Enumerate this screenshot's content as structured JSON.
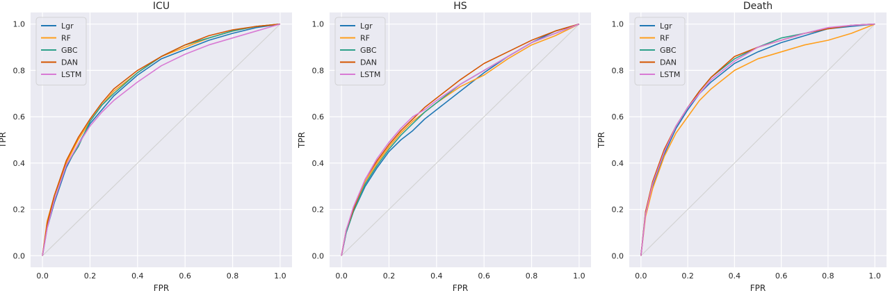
{
  "figure": {
    "panel_titles": [
      "ICU",
      "HS",
      "Death"
    ]
  },
  "colors": {
    "plot_background": "#eaeaf2",
    "grid": "#ffffff",
    "diagonal": "#d3d3d3",
    "Lgr": "#1f77b4",
    "RF": "#ff9f1c",
    "GBC": "#2ca089",
    "DAN": "#d45500",
    "LSTM": "#d87ad4"
  },
  "chart_data": [
    {
      "type": "line",
      "title": "ICU",
      "xlabel": "FPR",
      "ylabel": "TPR",
      "xlim": [
        0,
        1
      ],
      "ylim": [
        0,
        1
      ],
      "xticks": [
        "0.0",
        "0.2",
        "0.4",
        "0.6",
        "0.8",
        "1.0"
      ],
      "yticks": [
        "0.0",
        "0.2",
        "0.4",
        "0.6",
        "0.8",
        "1.0"
      ],
      "grid": true,
      "legend_position": "top-left",
      "diagonal": [
        [
          0,
          0
        ],
        [
          1,
          1
        ]
      ],
      "series": [
        {
          "name": "Lgr",
          "x": [
            0,
            0.02,
            0.05,
            0.1,
            0.15,
            0.2,
            0.25,
            0.3,
            0.4,
            0.5,
            0.6,
            0.7,
            0.8,
            0.9,
            1.0
          ],
          "y": [
            0,
            0.12,
            0.23,
            0.38,
            0.48,
            0.57,
            0.63,
            0.69,
            0.78,
            0.85,
            0.89,
            0.93,
            0.96,
            0.985,
            1.0
          ]
        },
        {
          "name": "RF",
          "x": [
            0,
            0.02,
            0.05,
            0.1,
            0.15,
            0.2,
            0.25,
            0.3,
            0.4,
            0.5,
            0.6,
            0.7,
            0.8,
            0.9,
            1.0
          ],
          "y": [
            0,
            0.15,
            0.26,
            0.4,
            0.5,
            0.58,
            0.65,
            0.71,
            0.79,
            0.86,
            0.9,
            0.94,
            0.97,
            0.99,
            1.0
          ]
        },
        {
          "name": "GBC",
          "x": [
            0,
            0.02,
            0.05,
            0.1,
            0.15,
            0.2,
            0.25,
            0.3,
            0.4,
            0.5,
            0.6,
            0.7,
            0.8,
            0.9,
            1.0
          ],
          "y": [
            0,
            0.13,
            0.24,
            0.39,
            0.47,
            0.58,
            0.65,
            0.7,
            0.79,
            0.86,
            0.91,
            0.94,
            0.97,
            0.99,
            1.0
          ]
        },
        {
          "name": "DAN",
          "x": [
            0,
            0.02,
            0.05,
            0.1,
            0.15,
            0.2,
            0.25,
            0.3,
            0.4,
            0.5,
            0.6,
            0.7,
            0.8,
            0.9,
            1.0
          ],
          "y": [
            0,
            0.14,
            0.26,
            0.41,
            0.51,
            0.59,
            0.66,
            0.72,
            0.8,
            0.86,
            0.91,
            0.95,
            0.975,
            0.99,
            1.0
          ]
        },
        {
          "name": "LSTM",
          "x": [
            0,
            0.02,
            0.05,
            0.1,
            0.15,
            0.2,
            0.25,
            0.3,
            0.4,
            0.5,
            0.6,
            0.7,
            0.8,
            0.9,
            1.0
          ],
          "y": [
            0,
            0.12,
            0.24,
            0.39,
            0.48,
            0.56,
            0.62,
            0.67,
            0.75,
            0.82,
            0.87,
            0.91,
            0.94,
            0.97,
            1.0
          ]
        }
      ]
    },
    {
      "type": "line",
      "title": "HS",
      "xlabel": "FPR",
      "ylabel": "TPR",
      "xlim": [
        0,
        1
      ],
      "ylim": [
        0,
        1
      ],
      "xticks": [
        "0.0",
        "0.2",
        "0.4",
        "0.6",
        "0.8",
        "1.0"
      ],
      "yticks": [
        "0.0",
        "0.2",
        "0.4",
        "0.6",
        "0.8",
        "1.0"
      ],
      "grid": true,
      "legend_position": "top-left",
      "diagonal": [
        [
          0,
          0
        ],
        [
          1,
          1
        ]
      ],
      "series": [
        {
          "name": "Lgr",
          "x": [
            0,
            0.02,
            0.05,
            0.1,
            0.15,
            0.2,
            0.25,
            0.3,
            0.35,
            0.4,
            0.5,
            0.6,
            0.7,
            0.8,
            0.9,
            1.0
          ],
          "y": [
            0,
            0.1,
            0.19,
            0.3,
            0.38,
            0.45,
            0.5,
            0.54,
            0.59,
            0.63,
            0.71,
            0.79,
            0.86,
            0.92,
            0.97,
            1.0
          ]
        },
        {
          "name": "RF",
          "x": [
            0,
            0.02,
            0.05,
            0.1,
            0.15,
            0.2,
            0.25,
            0.3,
            0.35,
            0.4,
            0.5,
            0.6,
            0.7,
            0.8,
            0.9,
            1.0
          ],
          "y": [
            0,
            0.11,
            0.2,
            0.32,
            0.4,
            0.47,
            0.53,
            0.58,
            0.62,
            0.66,
            0.73,
            0.78,
            0.85,
            0.91,
            0.95,
            1.0
          ]
        },
        {
          "name": "GBC",
          "x": [
            0,
            0.02,
            0.05,
            0.1,
            0.15,
            0.2,
            0.25,
            0.3,
            0.35,
            0.4,
            0.5,
            0.6,
            0.7,
            0.8,
            0.9,
            1.0
          ],
          "y": [
            0,
            0.1,
            0.19,
            0.31,
            0.39,
            0.46,
            0.52,
            0.57,
            0.62,
            0.66,
            0.74,
            0.8,
            0.86,
            0.92,
            0.96,
            1.0
          ]
        },
        {
          "name": "DAN",
          "x": [
            0,
            0.02,
            0.05,
            0.1,
            0.15,
            0.2,
            0.25,
            0.3,
            0.35,
            0.4,
            0.5,
            0.6,
            0.7,
            0.8,
            0.9,
            1.0
          ],
          "y": [
            0,
            0.11,
            0.2,
            0.33,
            0.41,
            0.48,
            0.54,
            0.59,
            0.64,
            0.68,
            0.76,
            0.83,
            0.88,
            0.93,
            0.97,
            1.0
          ]
        },
        {
          "name": "LSTM",
          "x": [
            0,
            0.02,
            0.05,
            0.1,
            0.15,
            0.2,
            0.25,
            0.3,
            0.35,
            0.4,
            0.5,
            0.6,
            0.7,
            0.8,
            0.9,
            1.0
          ],
          "y": [
            0,
            0.11,
            0.21,
            0.33,
            0.42,
            0.49,
            0.55,
            0.6,
            0.63,
            0.67,
            0.74,
            0.8,
            0.86,
            0.92,
            0.96,
            1.0
          ]
        }
      ]
    },
    {
      "type": "line",
      "title": "Death",
      "xlabel": "FPR",
      "ylabel": "TPR",
      "xlim": [
        0,
        1
      ],
      "ylim": [
        0,
        1
      ],
      "xticks": [
        "0.0",
        "0.2",
        "0.4",
        "0.6",
        "0.8",
        "1.0"
      ],
      "yticks": [
        "0.0",
        "0.2",
        "0.4",
        "0.6",
        "0.8",
        "1.0"
      ],
      "grid": true,
      "legend_position": "top-left",
      "diagonal": [
        [
          0,
          0
        ],
        [
          1,
          1
        ]
      ],
      "series": [
        {
          "name": "Lgr",
          "x": [
            0,
            0.02,
            0.05,
            0.1,
            0.15,
            0.2,
            0.25,
            0.3,
            0.4,
            0.5,
            0.6,
            0.7,
            0.8,
            0.9,
            1.0
          ],
          "y": [
            0,
            0.18,
            0.3,
            0.44,
            0.55,
            0.63,
            0.7,
            0.75,
            0.83,
            0.88,
            0.92,
            0.95,
            0.98,
            0.99,
            1.0
          ]
        },
        {
          "name": "RF",
          "x": [
            0,
            0.02,
            0.05,
            0.1,
            0.15,
            0.2,
            0.25,
            0.3,
            0.4,
            0.5,
            0.6,
            0.7,
            0.8,
            0.9,
            1.0
          ],
          "y": [
            0,
            0.17,
            0.29,
            0.43,
            0.53,
            0.6,
            0.67,
            0.72,
            0.8,
            0.85,
            0.88,
            0.91,
            0.93,
            0.96,
            1.0
          ]
        },
        {
          "name": "GBC",
          "x": [
            0,
            0.02,
            0.05,
            0.1,
            0.15,
            0.2,
            0.25,
            0.3,
            0.4,
            0.5,
            0.6,
            0.7,
            0.8,
            0.9,
            1.0
          ],
          "y": [
            0,
            0.19,
            0.31,
            0.45,
            0.56,
            0.64,
            0.71,
            0.77,
            0.85,
            0.9,
            0.94,
            0.96,
            0.98,
            0.995,
            1.0
          ]
        },
        {
          "name": "DAN",
          "x": [
            0,
            0.02,
            0.05,
            0.1,
            0.15,
            0.2,
            0.25,
            0.3,
            0.4,
            0.5,
            0.6,
            0.7,
            0.8,
            0.9,
            1.0
          ],
          "y": [
            0,
            0.19,
            0.32,
            0.46,
            0.56,
            0.64,
            0.71,
            0.77,
            0.86,
            0.9,
            0.93,
            0.96,
            0.98,
            0.995,
            1.0
          ]
        },
        {
          "name": "LSTM",
          "x": [
            0,
            0.02,
            0.05,
            0.1,
            0.15,
            0.2,
            0.25,
            0.3,
            0.4,
            0.5,
            0.6,
            0.7,
            0.8,
            0.9,
            1.0
          ],
          "y": [
            0,
            0.18,
            0.31,
            0.45,
            0.56,
            0.64,
            0.7,
            0.76,
            0.84,
            0.9,
            0.93,
            0.96,
            0.985,
            0.995,
            1.0
          ]
        }
      ]
    }
  ]
}
